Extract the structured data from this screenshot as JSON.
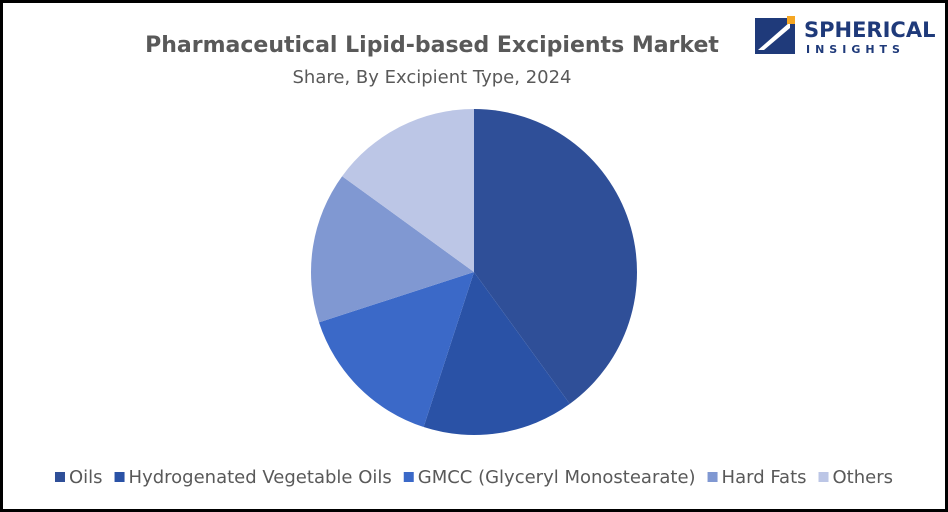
{
  "chart_data": {
    "type": "pie",
    "title": "Pharmaceutical Lipid-based Excipients Market",
    "subtitle": "Share, By Excipient Type, 2024",
    "categories": [
      "Oils",
      "Hydrogenated Vegetable Oils",
      "GMCC (Glyceryl Monostearate)",
      "Hard Fats",
      "Others"
    ],
    "values": [
      40,
      15,
      15,
      15,
      15
    ],
    "colors": [
      "#2f4f98",
      "#2a52a6",
      "#3b69c8",
      "#8098d2",
      "#bcc6e6"
    ],
    "legend": "bottom"
  },
  "logo": {
    "line1": "SPHERICAL",
    "line2": "INSIGHTS"
  }
}
